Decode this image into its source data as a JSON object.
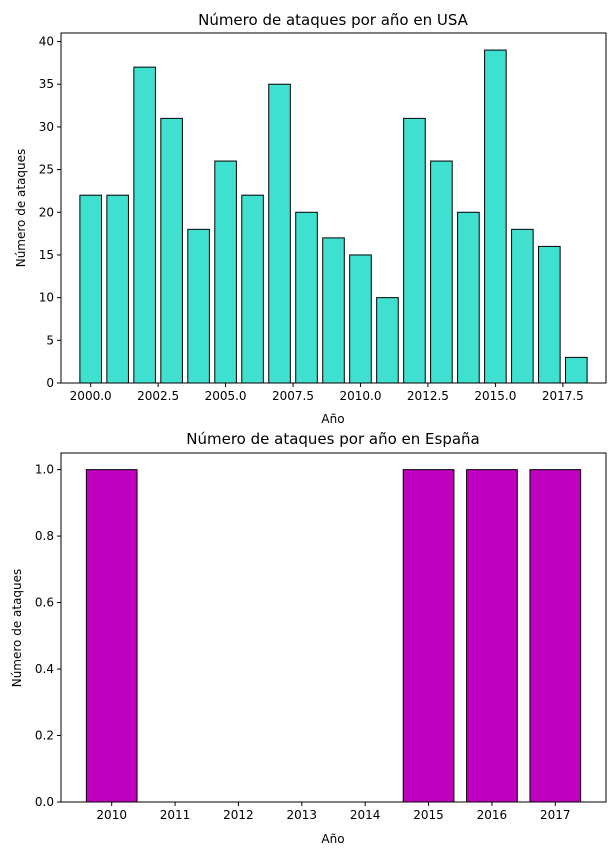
{
  "chart_data": [
    {
      "type": "bar",
      "title": "Número de ataques por año en USA",
      "xlabel": "Año",
      "ylabel": "Número de ataques",
      "x": [
        2000,
        2001,
        2002,
        2003,
        2004,
        2005,
        2006,
        2007,
        2008,
        2009,
        2010,
        2011,
        2012,
        2013,
        2014,
        2015,
        2016,
        2017,
        2018
      ],
      "values": [
        22,
        22,
        37,
        31,
        18,
        26,
        22,
        35,
        20,
        17,
        15,
        10,
        31,
        26,
        20,
        39,
        18,
        16,
        3
      ],
      "xlim": [
        1998.9,
        2019.1
      ],
      "ylim": [
        0,
        41
      ],
      "xticks": [
        "2000.0",
        "2002.5",
        "2005.0",
        "2007.5",
        "2010.0",
        "2012.5",
        "2015.0",
        "2017.5"
      ],
      "yticks": [
        "0",
        "5",
        "10",
        "15",
        "20",
        "25",
        "30",
        "35",
        "40"
      ],
      "bar_color": "#40E0D0",
      "edge_color": "#000000",
      "grid": false,
      "legend": "none"
    },
    {
      "type": "bar",
      "title": "Número de ataques por año en España",
      "xlabel": "Año",
      "ylabel": "Número de ataques",
      "categories": [
        "2010",
        "2011",
        "2012",
        "2013",
        "2014",
        "2015",
        "2016",
        "2017"
      ],
      "values": [
        1,
        0,
        0,
        0,
        0,
        1,
        1,
        1
      ],
      "ylim": [
        0,
        1.05
      ],
      "yticks": [
        "0.0",
        "0.2",
        "0.4",
        "0.6",
        "0.8",
        "1.0"
      ],
      "bar_color": "#BF00BF",
      "edge_color": "#000000",
      "grid": false,
      "legend": "none"
    }
  ]
}
